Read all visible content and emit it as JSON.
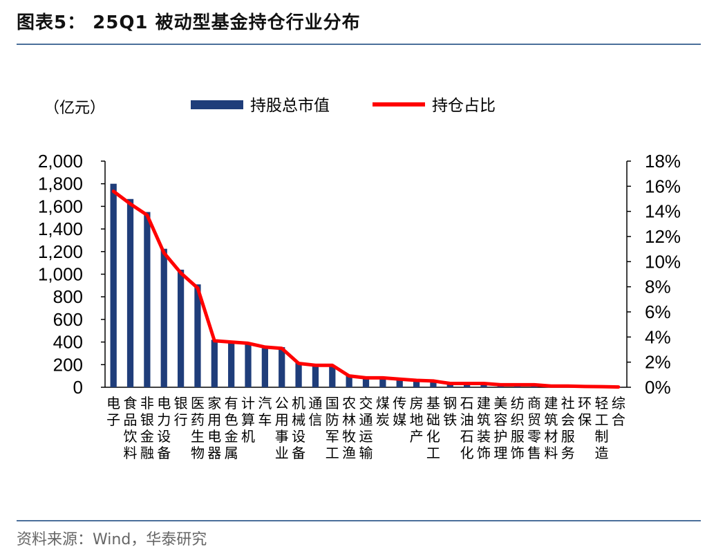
{
  "header": {
    "title": "图表5： 25Q1 被动型基金持仓行业分布"
  },
  "footer": {
    "source": "资料来源：Wind，华泰研究"
  },
  "chart_data": {
    "type": "bar",
    "unit_label": "（亿元）",
    "categories": [
      "电子",
      "食品饮料",
      "非银金融",
      "电力设备",
      "银行",
      "医药生物",
      "家用电器",
      "有色金属",
      "计算机",
      "汽车",
      "公用事业",
      "机械设备",
      "通信",
      "国防军工",
      "农林牧渔",
      "交通运输",
      "煤炭",
      "传媒",
      "房地产",
      "基础化工",
      "钢铁",
      "石油石化",
      "建筑装饰",
      "美容护理",
      "纺织服饰",
      "商贸零售",
      "建筑材料",
      "社会服务",
      "环保",
      "轻工制造",
      "综合"
    ],
    "series": [
      {
        "name": "持股总市值",
        "type": "bar",
        "axis": "left",
        "color": "#1f3d7a",
        "values": [
          1800,
          1665,
          1550,
          1225,
          1040,
          910,
          420,
          395,
          385,
          345,
          355,
          215,
          195,
          190,
          105,
          90,
          80,
          65,
          58,
          52,
          35,
          34,
          32,
          25,
          23,
          20,
          12,
          10,
          7,
          6,
          2
        ]
      },
      {
        "name": "持仓占比",
        "type": "line",
        "axis": "right",
        "color": "#ff0000",
        "values": [
          15.6,
          14.6,
          13.7,
          10.7,
          9.1,
          7.9,
          3.7,
          3.6,
          3.5,
          3.2,
          3.1,
          1.9,
          1.75,
          1.75,
          0.9,
          0.75,
          0.75,
          0.65,
          0.55,
          0.5,
          0.3,
          0.3,
          0.3,
          0.2,
          0.2,
          0.2,
          0.1,
          0.1,
          0.06,
          0.05,
          0.02
        ]
      }
    ],
    "y_left": {
      "min": 0,
      "max": 2000,
      "step": 200,
      "ticks": [
        "0",
        "200",
        "400",
        "600",
        "800",
        "1,000",
        "1,200",
        "1,400",
        "1,600",
        "1,800",
        "2,000"
      ]
    },
    "y_right": {
      "min": 0,
      "max": 18,
      "step": 2,
      "ticks": [
        "0%",
        "2%",
        "4%",
        "6%",
        "8%",
        "10%",
        "12%",
        "14%",
        "16%",
        "18%"
      ]
    },
    "grid": false,
    "legend_position": "top-center"
  }
}
